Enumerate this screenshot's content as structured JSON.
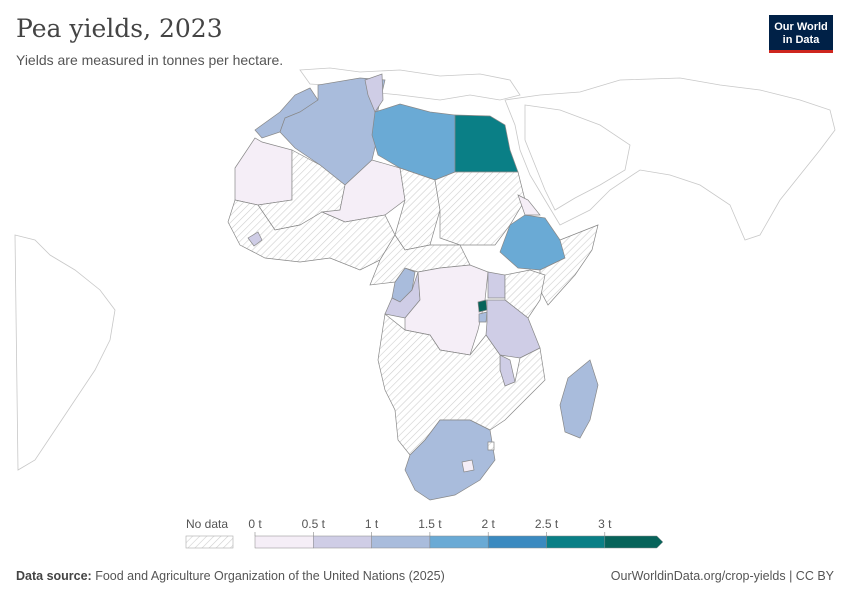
{
  "header": {
    "title": "Pea yields, 2023",
    "subtitle": "Yields are measured in tonnes per hectare."
  },
  "logo": {
    "line1": "Our World",
    "line2": "in Data"
  },
  "legend": {
    "no_data_label": "No data",
    "ticks": [
      "0 t",
      "0.5 t",
      "1 t",
      "1.5 t",
      "2 t",
      "2.5 t",
      "3 t"
    ],
    "bin_colors": [
      "#f5eef7",
      "#cfcde6",
      "#a9bcdc",
      "#6aaad5",
      "#3b8ac0",
      "#0a7f86",
      "#07635a"
    ]
  },
  "map": {
    "metric": "Pea yields",
    "unit": "tonnes per hectare",
    "countries": [
      {
        "name": "Morocco",
        "value": 1.1
      },
      {
        "name": "Algeria",
        "value": 1.1
      },
      {
        "name": "Tunisia",
        "value": 0.9
      },
      {
        "name": "Libya",
        "value": 1.7
      },
      {
        "name": "Egypt",
        "value": 2.6
      },
      {
        "name": "Mauritania",
        "value": 0.3
      },
      {
        "name": "Mali",
        "value": null
      },
      {
        "name": "Niger",
        "value": 0.2
      },
      {
        "name": "Chad",
        "value": null
      },
      {
        "name": "Sudan",
        "value": null
      },
      {
        "name": "Eritrea",
        "value": 0.3
      },
      {
        "name": "Ethiopia",
        "value": 1.7
      },
      {
        "name": "Guinea",
        "value": 0.9
      },
      {
        "name": "DR Congo",
        "value": 0.4
      },
      {
        "name": "Cameroon",
        "value": 1.1
      },
      {
        "name": "Congo",
        "value": 0.8
      },
      {
        "name": "Uganda",
        "value": 0.8
      },
      {
        "name": "Rwanda",
        "value": 3.2
      },
      {
        "name": "Burundi",
        "value": 1.1
      },
      {
        "name": "Tanzania",
        "value": 0.9
      },
      {
        "name": "Malawi",
        "value": 0.9
      },
      {
        "name": "Madagascar",
        "value": 1.2
      },
      {
        "name": "South Africa",
        "value": 1.2
      },
      {
        "name": "Lesotho",
        "value": 0.3
      },
      {
        "name": "Eswatini",
        "value": null
      }
    ]
  },
  "footer": {
    "source_label": "Data source:",
    "source_text": "Food and Agriculture Organization of the United Nations (2025)",
    "link_text": "OurWorldinData.org/crop-yields | CC BY"
  }
}
